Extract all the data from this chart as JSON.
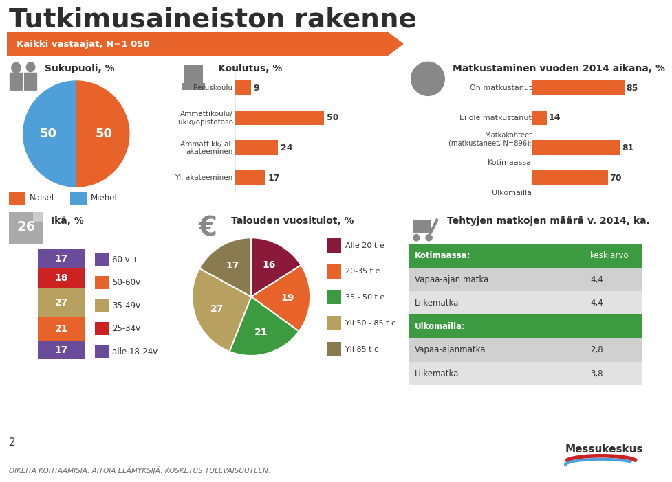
{
  "title": "Tutkimusaineiston rakenne",
  "subtitle": "Kaikki vastaajat, N=1 050",
  "bg_color": "#ffffff",
  "orange": "#E8632A",
  "blue": "#4FA0D8",
  "green": "#3C9B40",
  "gender_pie": {
    "values": [
      50,
      50
    ],
    "colors": [
      "#E8632A",
      "#4FA0D8"
    ],
    "labels": [
      "Naiset",
      "Miehet"
    ],
    "title": "Sukupuoli, %"
  },
  "education_bars": {
    "title": "Koulutus, %",
    "categories": [
      "Peruskoulu",
      "Ammattikoulu/\nlukio/opistotaso",
      "Ammattikk/ al.\nakateeminen",
      "Yl. akateeminen"
    ],
    "values": [
      9,
      50,
      24,
      17
    ],
    "color": "#E8632A"
  },
  "travel_bars": {
    "title": "Matkustaminen vuoden 2014 aikana, %",
    "categories": [
      "On matkustanut",
      "Ei ole matkustanut",
      "Kotimaassa",
      "Ulkomailla"
    ],
    "values": [
      85,
      14,
      81,
      70
    ],
    "color": "#E8632A",
    "note": "Matkakohteet\n(matkustaneet, N=896):"
  },
  "age_bar": {
    "title": "Ikä, %",
    "icon": "26",
    "categories": [
      "60 v.+",
      "50-60v",
      "35-49v",
      "25-34v",
      "alle 18-24v"
    ],
    "values": [
      17,
      21,
      27,
      18,
      17
    ],
    "colors": [
      "#6B4C9A",
      "#E8632A",
      "#B8A060",
      "#CC2222",
      "#6B4C9A"
    ]
  },
  "income_pie": {
    "title": "Talouden vuositulot, %",
    "values": [
      16,
      19,
      21,
      27,
      17
    ],
    "labels": [
      "Alle 20 t e",
      "20-35 t e",
      "35 - 50 t e",
      "Yli 50 - 85 t e",
      "Yli 85 t e"
    ],
    "colors": [
      "#8B1A3A",
      "#E8632A",
      "#3C9B40",
      "#B8A060",
      "#8A7A50"
    ]
  },
  "travel_table": {
    "title": "Tehtyjen matkojen määrä v. 2014, ka.",
    "header_color": "#3C9B40",
    "row_color1": "#D0D0D0",
    "row_color2": "#E2E2E2",
    "col1_header": "Kotimaassa:",
    "col2_header": "keskiarvo",
    "rows": [
      [
        "Vapaa-ajan matka",
        "4,4",
        false
      ],
      [
        "Liikematka",
        "4,4",
        false
      ],
      [
        "Ulkomailla:",
        "",
        true
      ],
      [
        "Vapaa-ajanmatka",
        "2,8",
        false
      ],
      [
        "Liikematka",
        "3,8",
        false
      ]
    ]
  },
  "footer_text": "OIKEITA KOHTAAMISIA. AITOJA ELÄMYKSIJÄ. KOSKETUS TULEVAISUUTEEN.",
  "page_num": "2"
}
